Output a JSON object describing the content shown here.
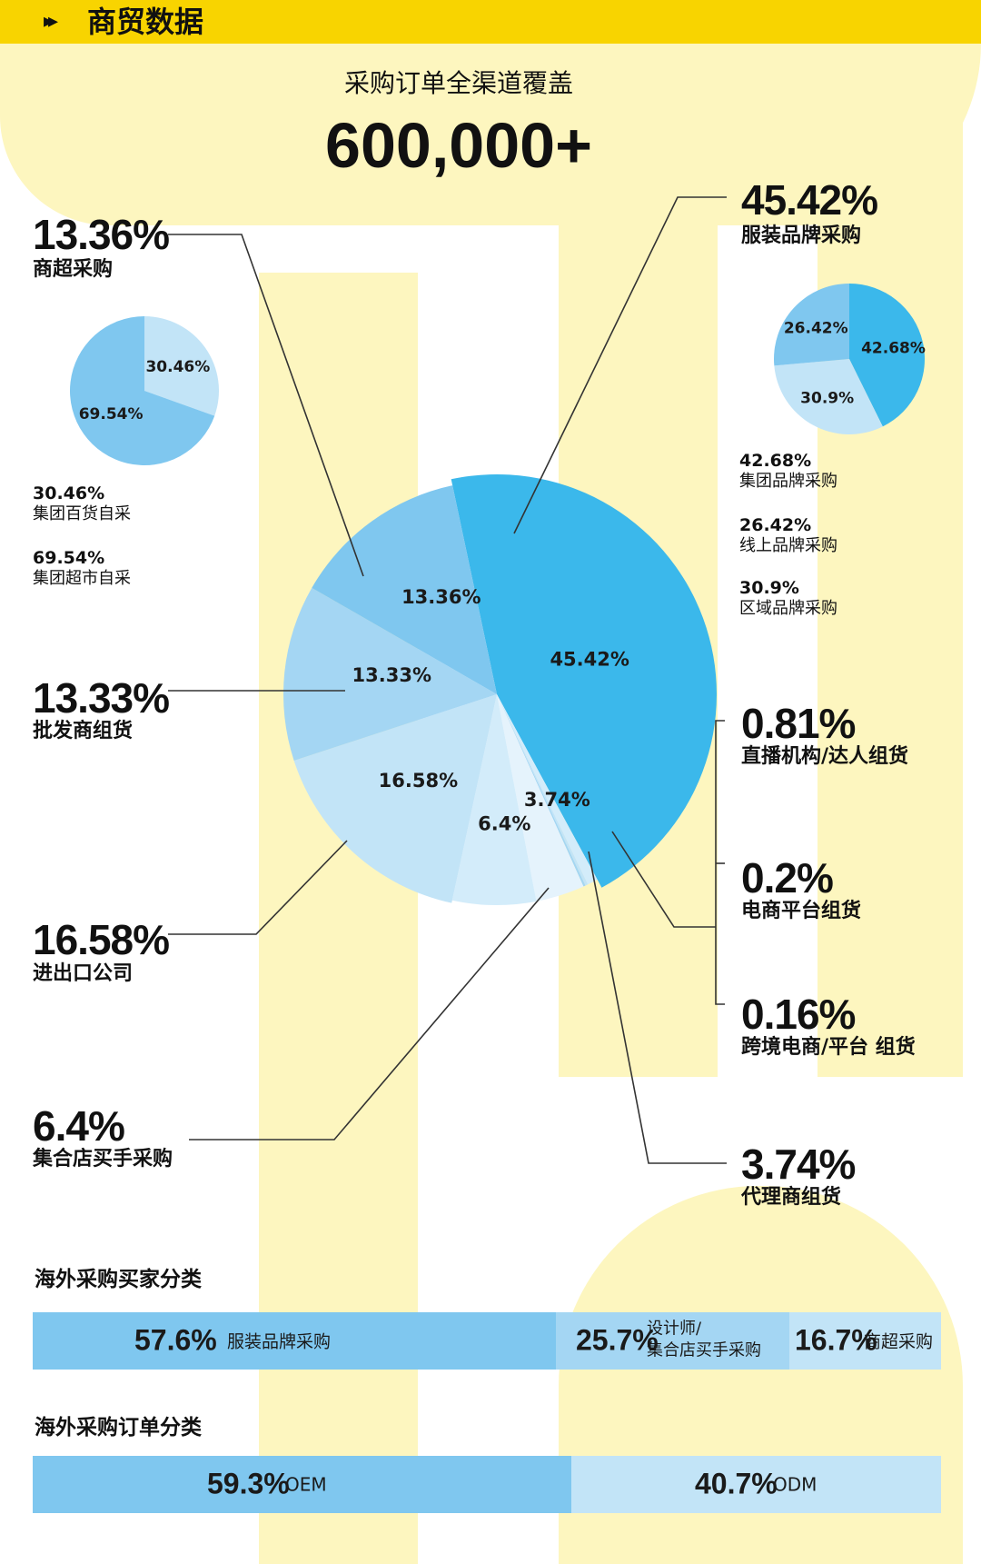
{
  "header": {
    "title": "商贸数据"
  },
  "main": {
    "subtitle": "采购订单全渠道覆盖",
    "total": "600,000+"
  },
  "colors": {
    "header": "#f8d400",
    "bg_pattern": "#fdf6bf",
    "c1": "#3bb8eb",
    "c2": "#7fc7ef",
    "c3": "#a4d6f3",
    "c4": "#c2e4f7",
    "c5": "#d3ecfa",
    "c6": "#e5f3fc"
  },
  "chart_data": [
    {
      "type": "pie",
      "title": "采购订单全渠道覆盖",
      "slices": [
        {
          "label": "服装品牌采购",
          "value": 45.42,
          "text": "45.42%"
        },
        {
          "label": "直播机构/达人组货",
          "value": 0.81,
          "text": "0.81%"
        },
        {
          "label": "电商平台组货",
          "value": 0.2,
          "text": "0.2%"
        },
        {
          "label": "跨境电商/平台 组货",
          "value": 0.16,
          "text": "0.16%"
        },
        {
          "label": "代理商组货",
          "value": 3.74,
          "text": "3.74%"
        },
        {
          "label": "集合店买手采购",
          "value": 6.4,
          "text": "6.4%"
        },
        {
          "label": "进出口公司",
          "value": 16.58,
          "text": "16.58%"
        },
        {
          "label": "批发商组货",
          "value": 13.33,
          "text": "13.33%"
        },
        {
          "label": "商超采购",
          "value": 13.36,
          "text": "13.36%"
        }
      ]
    },
    {
      "type": "pie",
      "slices": [
        {
          "label": "集团百货自采",
          "value": 30.46,
          "text": "30.46%"
        },
        {
          "label": "集团超市自采",
          "value": 69.54,
          "text": "69.54%"
        }
      ]
    },
    {
      "type": "pie",
      "slices": [
        {
          "label": "集团品牌采购",
          "value": 42.68,
          "text": "42.68%"
        },
        {
          "label": "区域品牌采购",
          "value": 30.9,
          "text": "30.9%"
        },
        {
          "label": "线上品牌采购",
          "value": 26.42,
          "text": "26.42%"
        }
      ]
    },
    {
      "type": "bar",
      "title": "海外采购买家分类",
      "segments": [
        {
          "label": "服装品牌采购",
          "value": 57.6,
          "text": "57.6%"
        },
        {
          "label": "设计师/集合店买手采购",
          "label_lines": [
            "设计师/",
            "集合店买手采购"
          ],
          "value": 25.7,
          "text": "25.7%"
        },
        {
          "label": "商超采购",
          "value": 16.7,
          "text": "16.7%"
        }
      ]
    },
    {
      "type": "bar",
      "title": "海外采购订单分类",
      "segments": [
        {
          "label": "OEM",
          "value": 59.3,
          "text": "59.3%"
        },
        {
          "label": "ODM",
          "value": 40.7,
          "text": "40.7%"
        }
      ]
    }
  ]
}
